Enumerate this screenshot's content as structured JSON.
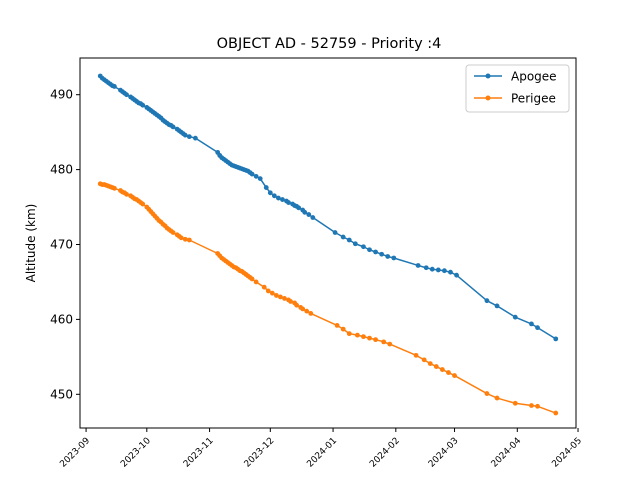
{
  "chart_data": {
    "type": "line",
    "title": "OBJECT AD - 52759 - Priority :4",
    "xlabel": "",
    "ylabel": "Altitude (km)",
    "x_tick_labels": [
      "2023-09",
      "2023-10",
      "2023-11",
      "2023-12",
      "2024-01",
      "2024-02",
      "2024-03",
      "2024-04",
      "2024-05"
    ],
    "x_tick_dates": [
      "2023-09-01",
      "2023-10-01",
      "2023-11-01",
      "2023-12-01",
      "2024-01-01",
      "2024-02-01",
      "2024-03-01",
      "2024-04-01",
      "2024-05-01"
    ],
    "y_ticks": [
      450,
      460,
      470,
      480,
      490
    ],
    "xlim": [
      "2023-08-29",
      "2024-04-30"
    ],
    "ylim": [
      445.5,
      494.9
    ],
    "grid": false,
    "legend_position": "top-right",
    "series": [
      {
        "name": "Apogee",
        "color": "#1f77b4",
        "points": [
          [
            "2023-09-08",
            492.5
          ],
          [
            "2023-09-09",
            492.2
          ],
          [
            "2023-09-10",
            492.0
          ],
          [
            "2023-09-11",
            491.8
          ],
          [
            "2023-09-12",
            491.6
          ],
          [
            "2023-09-13",
            491.4
          ],
          [
            "2023-09-14",
            491.2
          ],
          [
            "2023-09-15",
            491.1
          ],
          [
            "2023-09-18",
            490.6
          ],
          [
            "2023-09-19",
            490.4
          ],
          [
            "2023-09-20",
            490.2
          ],
          [
            "2023-09-21",
            490.0
          ],
          [
            "2023-09-23",
            489.7
          ],
          [
            "2023-09-24",
            489.5
          ],
          [
            "2023-09-25",
            489.3
          ],
          [
            "2023-09-26",
            489.1
          ],
          [
            "2023-09-27",
            488.9
          ],
          [
            "2023-09-28",
            488.8
          ],
          [
            "2023-09-29",
            488.6
          ],
          [
            "2023-10-01",
            488.3
          ],
          [
            "2023-10-02",
            488.1
          ],
          [
            "2023-10-03",
            487.9
          ],
          [
            "2023-10-04",
            487.7
          ],
          [
            "2023-10-05",
            487.5
          ],
          [
            "2023-10-06",
            487.3
          ],
          [
            "2023-10-07",
            487.1
          ],
          [
            "2023-10-08",
            486.9
          ],
          [
            "2023-10-09",
            486.6
          ],
          [
            "2023-10-10",
            486.4
          ],
          [
            "2023-10-11",
            486.2
          ],
          [
            "2023-10-12",
            486.0
          ],
          [
            "2023-10-13",
            485.9
          ],
          [
            "2023-10-14",
            485.7
          ],
          [
            "2023-10-16",
            485.4
          ],
          [
            "2023-10-17",
            485.2
          ],
          [
            "2023-10-18",
            485.0
          ],
          [
            "2023-10-19",
            484.8
          ],
          [
            "2023-10-20",
            484.6
          ],
          [
            "2023-10-22",
            484.4
          ],
          [
            "2023-10-25",
            484.2
          ],
          [
            "2023-11-05",
            482.3
          ],
          [
            "2023-11-06",
            481.9
          ],
          [
            "2023-11-07",
            481.6
          ],
          [
            "2023-11-08",
            481.4
          ],
          [
            "2023-11-09",
            481.2
          ],
          [
            "2023-11-10",
            481.0
          ],
          [
            "2023-11-11",
            480.8
          ],
          [
            "2023-11-12",
            480.6
          ],
          [
            "2023-11-13",
            480.5
          ],
          [
            "2023-11-14",
            480.4
          ],
          [
            "2023-11-15",
            480.3
          ],
          [
            "2023-11-16",
            480.2
          ],
          [
            "2023-11-17",
            480.1
          ],
          [
            "2023-11-18",
            480.0
          ],
          [
            "2023-11-19",
            479.9
          ],
          [
            "2023-11-20",
            479.8
          ],
          [
            "2023-11-21",
            479.6
          ],
          [
            "2023-11-22",
            479.4
          ],
          [
            "2023-11-24",
            479.1
          ],
          [
            "2023-11-26",
            478.8
          ],
          [
            "2023-11-29",
            477.6
          ],
          [
            "2023-12-01",
            476.9
          ],
          [
            "2023-12-03",
            476.5
          ],
          [
            "2023-12-05",
            476.2
          ],
          [
            "2023-12-07",
            476.0
          ],
          [
            "2023-12-09",
            475.8
          ],
          [
            "2023-12-10",
            475.6
          ],
          [
            "2023-12-12",
            475.4
          ],
          [
            "2023-12-13",
            475.2
          ],
          [
            "2023-12-14",
            475.1
          ],
          [
            "2023-12-15",
            474.9
          ],
          [
            "2023-12-17",
            474.6
          ],
          [
            "2023-12-18",
            474.3
          ],
          [
            "2023-12-20",
            474.0
          ],
          [
            "2023-12-22",
            473.6
          ],
          [
            "2024-01-02",
            471.6
          ],
          [
            "2024-01-06",
            471.0
          ],
          [
            "2024-01-09",
            470.6
          ],
          [
            "2024-01-12",
            470.1
          ],
          [
            "2024-01-16",
            469.7
          ],
          [
            "2024-01-19",
            469.3
          ],
          [
            "2024-01-22",
            469.0
          ],
          [
            "2024-01-25",
            468.7
          ],
          [
            "2024-01-28",
            468.4
          ],
          [
            "2024-01-31",
            468.2
          ],
          [
            "2024-02-12",
            467.2
          ],
          [
            "2024-02-16",
            466.9
          ],
          [
            "2024-02-19",
            466.7
          ],
          [
            "2024-02-22",
            466.6
          ],
          [
            "2024-02-25",
            466.5
          ],
          [
            "2024-02-28",
            466.3
          ],
          [
            "2024-03-02",
            465.9
          ],
          [
            "2024-03-17",
            462.5
          ],
          [
            "2024-03-22",
            461.8
          ],
          [
            "2024-03-31",
            460.3
          ],
          [
            "2024-04-08",
            459.4
          ],
          [
            "2024-04-11",
            458.9
          ],
          [
            "2024-04-20",
            457.4
          ]
        ]
      },
      {
        "name": "Perigee",
        "color": "#ff7f0e",
        "points": [
          [
            "2023-09-08",
            478.1
          ],
          [
            "2023-09-09",
            478.0
          ],
          [
            "2023-09-10",
            478.0
          ],
          [
            "2023-09-11",
            477.9
          ],
          [
            "2023-09-12",
            477.8
          ],
          [
            "2023-09-13",
            477.7
          ],
          [
            "2023-09-14",
            477.6
          ],
          [
            "2023-09-15",
            477.5
          ],
          [
            "2023-09-18",
            477.2
          ],
          [
            "2023-09-19",
            477.0
          ],
          [
            "2023-09-20",
            476.9
          ],
          [
            "2023-09-21",
            476.7
          ],
          [
            "2023-09-23",
            476.5
          ],
          [
            "2023-09-24",
            476.3
          ],
          [
            "2023-09-25",
            476.1
          ],
          [
            "2023-09-26",
            476.0
          ],
          [
            "2023-09-27",
            475.8
          ],
          [
            "2023-09-28",
            475.6
          ],
          [
            "2023-09-29",
            475.4
          ],
          [
            "2023-10-01",
            475.0
          ],
          [
            "2023-10-02",
            474.7
          ],
          [
            "2023-10-03",
            474.4
          ],
          [
            "2023-10-04",
            474.1
          ],
          [
            "2023-10-05",
            473.8
          ],
          [
            "2023-10-06",
            473.5
          ],
          [
            "2023-10-07",
            473.2
          ],
          [
            "2023-10-08",
            473.0
          ],
          [
            "2023-10-09",
            472.7
          ],
          [
            "2023-10-10",
            472.5
          ],
          [
            "2023-10-11",
            472.2
          ],
          [
            "2023-10-12",
            472.0
          ],
          [
            "2023-10-13",
            471.8
          ],
          [
            "2023-10-14",
            471.6
          ],
          [
            "2023-10-16",
            471.3
          ],
          [
            "2023-10-17",
            471.1
          ],
          [
            "2023-10-18",
            470.9
          ],
          [
            "2023-10-20",
            470.7
          ],
          [
            "2023-10-22",
            470.6
          ],
          [
            "2023-11-05",
            468.8
          ],
          [
            "2023-11-06",
            468.5
          ],
          [
            "2023-11-07",
            468.2
          ],
          [
            "2023-11-08",
            468.0
          ],
          [
            "2023-11-09",
            467.8
          ],
          [
            "2023-11-10",
            467.6
          ],
          [
            "2023-11-11",
            467.4
          ],
          [
            "2023-11-12",
            467.2
          ],
          [
            "2023-11-13",
            467.0
          ],
          [
            "2023-11-14",
            466.9
          ],
          [
            "2023-11-15",
            466.7
          ],
          [
            "2023-11-16",
            466.5
          ],
          [
            "2023-11-17",
            466.4
          ],
          [
            "2023-11-18",
            466.2
          ],
          [
            "2023-11-19",
            466.0
          ],
          [
            "2023-11-20",
            465.8
          ],
          [
            "2023-11-21",
            465.6
          ],
          [
            "2023-11-22",
            465.4
          ],
          [
            "2023-11-24",
            465.0
          ],
          [
            "2023-11-28",
            464.3
          ],
          [
            "2023-11-30",
            463.8
          ],
          [
            "2023-12-02",
            463.5
          ],
          [
            "2023-12-04",
            463.2
          ],
          [
            "2023-12-06",
            463.0
          ],
          [
            "2023-12-08",
            462.8
          ],
          [
            "2023-12-10",
            462.6
          ],
          [
            "2023-12-11",
            462.4
          ],
          [
            "2023-12-13",
            462.2
          ],
          [
            "2023-12-14",
            461.9
          ],
          [
            "2023-12-16",
            461.6
          ],
          [
            "2023-12-17",
            461.4
          ],
          [
            "2023-12-19",
            461.1
          ],
          [
            "2023-12-21",
            460.8
          ],
          [
            "2024-01-03",
            459.2
          ],
          [
            "2024-01-06",
            458.7
          ],
          [
            "2024-01-09",
            458.1
          ],
          [
            "2024-01-13",
            457.9
          ],
          [
            "2024-01-16",
            457.7
          ],
          [
            "2024-01-19",
            457.5
          ],
          [
            "2024-01-22",
            457.3
          ],
          [
            "2024-01-26",
            457.0
          ],
          [
            "2024-01-29",
            456.7
          ],
          [
            "2024-02-11",
            455.2
          ],
          [
            "2024-02-15",
            454.6
          ],
          [
            "2024-02-18",
            454.1
          ],
          [
            "2024-02-21",
            453.7
          ],
          [
            "2024-02-24",
            453.3
          ],
          [
            "2024-02-27",
            452.9
          ],
          [
            "2024-03-01",
            452.5
          ],
          [
            "2024-03-17",
            450.1
          ],
          [
            "2024-03-22",
            449.5
          ],
          [
            "2024-03-31",
            448.8
          ],
          [
            "2024-04-08",
            448.5
          ],
          [
            "2024-04-11",
            448.4
          ],
          [
            "2024-04-20",
            447.5
          ]
        ]
      }
    ]
  }
}
